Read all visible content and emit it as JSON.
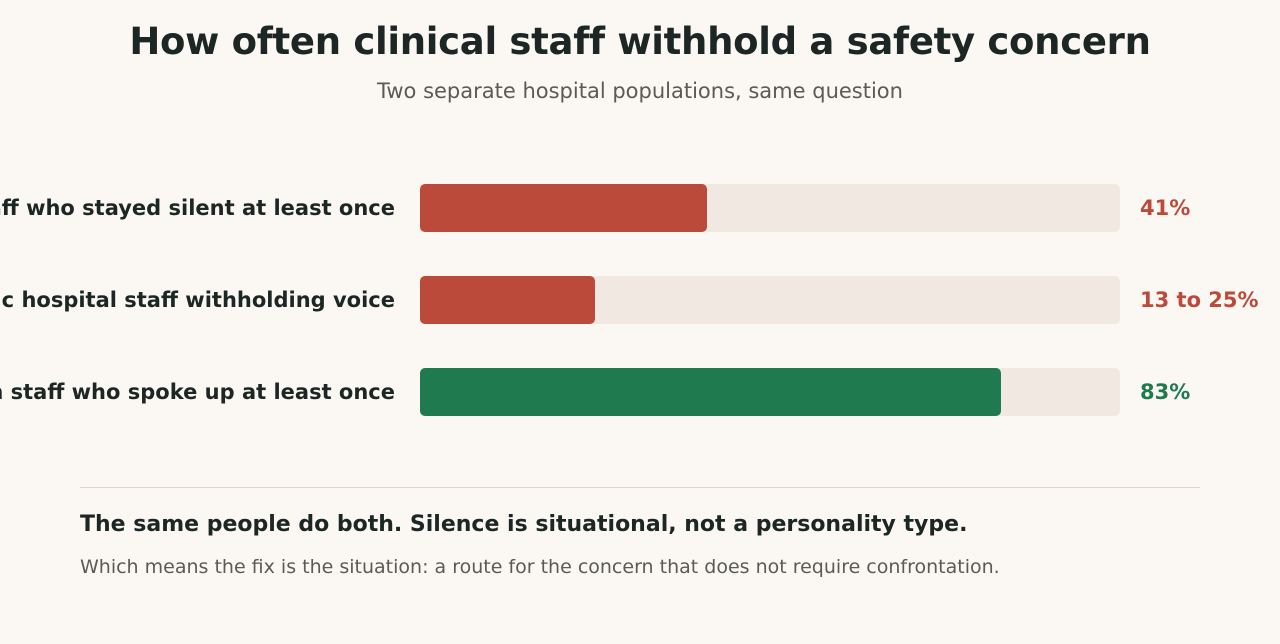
{
  "title": "How often clinical staff withhold a safety concern",
  "subtitle": "Two separate hospital populations, same question",
  "chart_data": {
    "type": "bar",
    "orientation": "horizontal",
    "xlim": [
      0,
      100
    ],
    "grid": false,
    "categories": [
      "staff who stayed silent at least once",
      "atric hospital staff withholding voice",
      "ion staff who spoke up at least once"
    ],
    "values": [
      41,
      25,
      83
    ],
    "value_labels": [
      "41%",
      "13 to 25%",
      "83%"
    ],
    "colors": [
      "#bc4a3a",
      "#bc4a3a",
      "#1f7a4f"
    ]
  },
  "colors": {
    "track": "#f1e9e1",
    "silent": "#bc4a3a",
    "spoke_up": "#1f7a4f"
  },
  "note": {
    "headline": "The same people do both. Silence is situational, not a personality type.",
    "body": "Which means the fix is the situation: a route for the concern that does not require confrontation."
  }
}
